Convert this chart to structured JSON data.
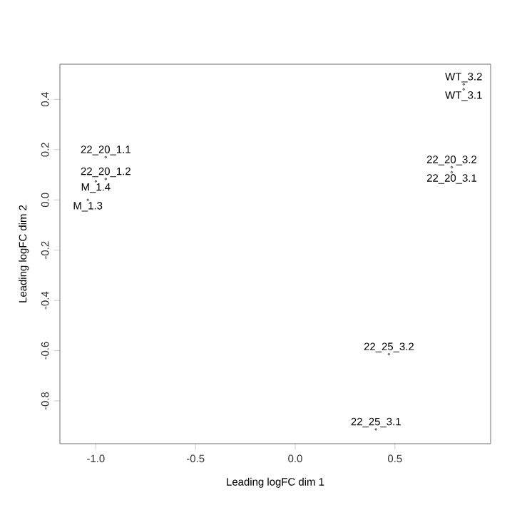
{
  "chart_data": {
    "type": "scatter",
    "xlabel": "Leading logFC dim 1",
    "ylabel": "Leading logFC dim 2",
    "annotations": [
      {
        "text": "22_20_1.1",
        "x": -0.95,
        "y": 0.17
      },
      {
        "text": "22_20_1.2",
        "x": -0.95,
        "y": 0.083
      },
      {
        "text": "M_1.4",
        "x": -1.0,
        "y": 0.074
      },
      {
        "text": "M_1.3",
        "x": -1.04,
        "y": 0.0
      },
      {
        "text": "WT_3.2",
        "x": 0.845,
        "y": 0.46
      },
      {
        "text": "WT_3.1",
        "x": 0.845,
        "y": 0.44
      },
      {
        "text": "22_20_3.2",
        "x": 0.785,
        "y": 0.13
      },
      {
        "text": "22_20_3.1",
        "x": 0.785,
        "y": 0.11
      },
      {
        "text": "22_25_3.2",
        "x": 0.47,
        "y": -0.614
      },
      {
        "text": "22_25_3.1",
        "x": 0.405,
        "y": -0.913
      }
    ],
    "x": [
      -0.95,
      -0.95,
      -1.0,
      -1.04,
      0.845,
      0.845,
      0.785,
      0.785,
      0.47,
      0.405
    ],
    "values": [
      0.17,
      0.083,
      0.074,
      0.0,
      0.46,
      0.44,
      0.13,
      0.11,
      -0.614,
      -0.913
    ],
    "color": "#000000",
    "marker": "circle",
    "xlim": [
      -1.18,
      0.98
    ],
    "ylim": [
      -0.97,
      0.54
    ],
    "xticks": [
      {
        "value": -1,
        "label": "-1.0"
      },
      {
        "value": -0.5,
        "label": "-0.5"
      },
      {
        "value": 0,
        "label": "0.0"
      },
      {
        "value": 0.5,
        "label": "0.5"
      }
    ],
    "yticks": [
      {
        "value": -0.8,
        "label": "-0.8"
      },
      {
        "value": -0.6,
        "label": "-0.6"
      },
      {
        "value": -0.4,
        "label": "-0.4"
      },
      {
        "value": -0.2,
        "label": "-0.2"
      },
      {
        "value": 0,
        "label": "0.0"
      },
      {
        "value": 0.2,
        "label": "0.2"
      },
      {
        "value": 0.4,
        "label": "0.4"
      }
    ]
  }
}
